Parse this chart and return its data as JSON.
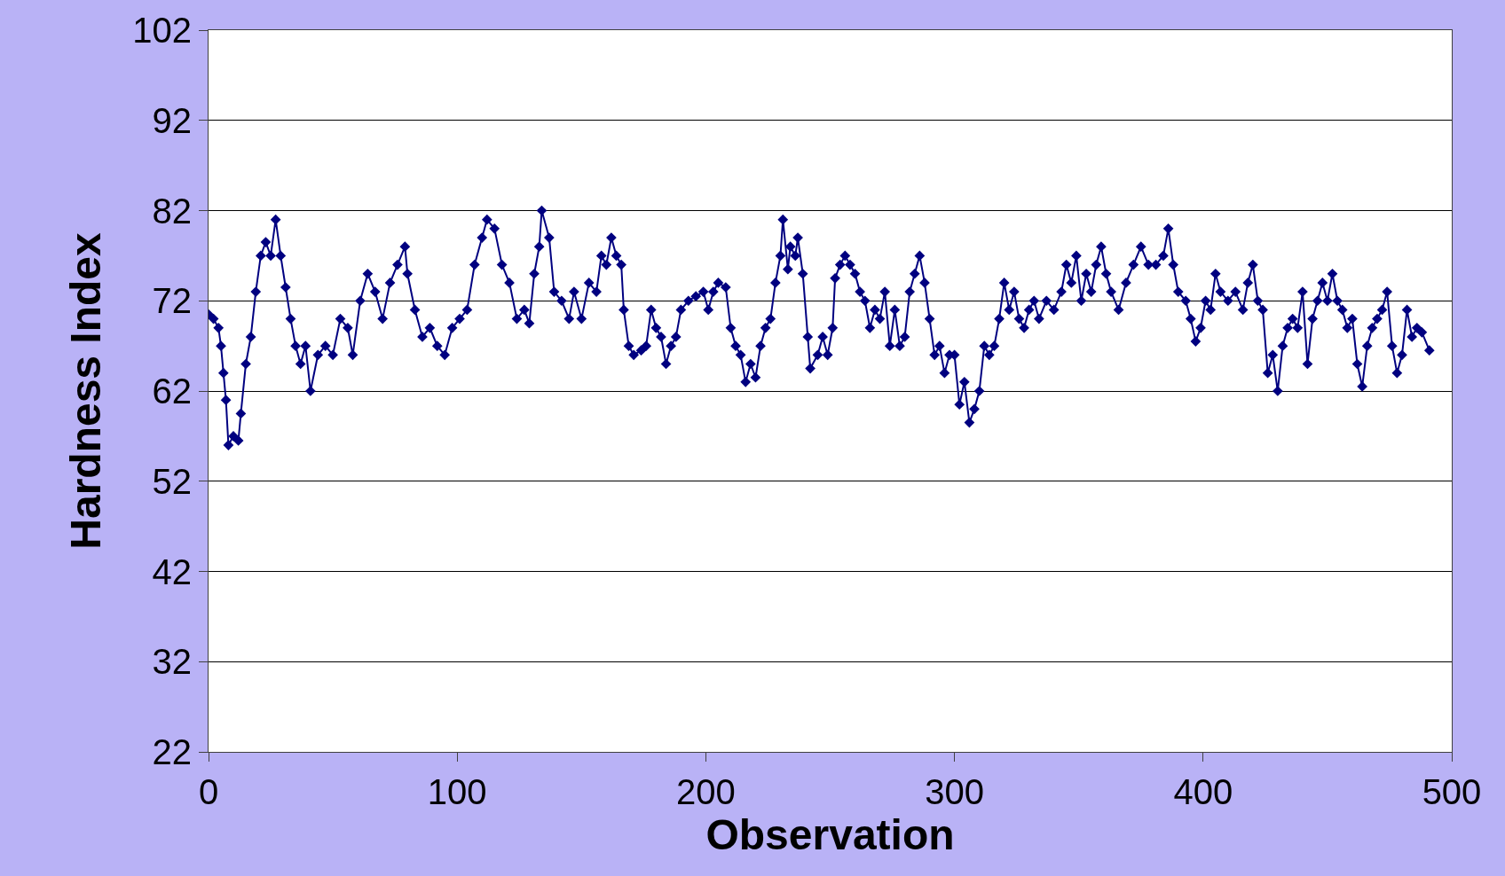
{
  "chart_data": {
    "type": "line",
    "xlabel": "Observation",
    "ylabel": "Hardness Index",
    "x": [
      0,
      2,
      4,
      5,
      6,
      7,
      8,
      10,
      12,
      13,
      15,
      17,
      19,
      21,
      23,
      25,
      27,
      29,
      31,
      33,
      35,
      37,
      39,
      41,
      44,
      47,
      50,
      53,
      56,
      58,
      61,
      64,
      67,
      70,
      73,
      76,
      79,
      80,
      83,
      86,
      89,
      92,
      95,
      98,
      101,
      104,
      107,
      110,
      112,
      115,
      118,
      121,
      124,
      127,
      129,
      131,
      133,
      134,
      137,
      139,
      142,
      145,
      147,
      150,
      153,
      156,
      158,
      160,
      162,
      164,
      166,
      167,
      169,
      171,
      174,
      176,
      178,
      180,
      182,
      184,
      186,
      188,
      190,
      193,
      196,
      199,
      201,
      203,
      205,
      208,
      210,
      212,
      214,
      216,
      218,
      220,
      222,
      224,
      226,
      228,
      230,
      231,
      233,
      234,
      236,
      237,
      239,
      241,
      242,
      245,
      247,
      249,
      251,
      252,
      254,
      256,
      258,
      260,
      262,
      264,
      266,
      268,
      270,
      272,
      274,
      276,
      278,
      280,
      282,
      284,
      286,
      288,
      290,
      292,
      294,
      296,
      298,
      300,
      302,
      304,
      306,
      308,
      310,
      312,
      314,
      316,
      318,
      320,
      322,
      324,
      326,
      328,
      330,
      332,
      334,
      337,
      340,
      343,
      345,
      347,
      349,
      351,
      353,
      355,
      357,
      359,
      361,
      363,
      366,
      369,
      372,
      375,
      378,
      381,
      384,
      386,
      388,
      390,
      393,
      395,
      397,
      399,
      401,
      403,
      405,
      407,
      410,
      413,
      416,
      418,
      420,
      422,
      424,
      426,
      428,
      430,
      432,
      434,
      436,
      438,
      440,
      442,
      444,
      446,
      448,
      450,
      452,
      454,
      456,
      458,
      460,
      462,
      464,
      466,
      468,
      470,
      472,
      474,
      476,
      478,
      480,
      482,
      484,
      486,
      488,
      491
    ],
    "values": [
      70.5,
      70,
      69,
      67,
      64,
      61,
      56,
      57,
      56.5,
      59.5,
      65,
      68,
      73,
      77,
      78.5,
      77,
      81,
      77,
      73.5,
      70,
      67,
      65,
      67,
      62,
      66,
      67,
      66,
      70,
      69,
      66,
      72,
      75,
      73,
      70,
      74,
      76,
      78,
      75,
      71,
      68,
      69,
      67,
      66,
      69,
      70,
      71,
      76,
      79,
      81,
      80,
      76,
      74,
      70,
      71,
      69.5,
      75,
      78,
      82,
      79,
      73,
      72,
      70,
      73,
      70,
      74,
      73,
      77,
      76,
      79,
      77,
      76,
      71,
      67,
      66,
      66.5,
      67,
      71,
      69,
      68,
      65,
      67,
      68,
      71,
      72,
      72.5,
      73,
      71,
      73,
      74,
      73.5,
      69,
      67,
      66,
      63,
      65,
      63.5,
      67,
      69,
      70,
      74,
      77,
      81,
      75.5,
      78,
      77,
      79,
      75,
      68,
      64.5,
      66,
      68,
      66,
      69,
      74.5,
      76,
      77,
      76,
      75,
      73,
      72,
      69,
      71,
      70,
      73,
      67,
      71,
      67,
      68,
      73,
      75,
      77,
      74,
      70,
      66,
      67,
      64,
      66,
      66,
      60.5,
      63,
      58.5,
      60,
      62,
      67,
      66,
      67,
      70,
      74,
      71,
      73,
      70,
      69,
      71,
      72,
      70,
      72,
      71,
      73,
      76,
      74,
      77,
      72,
      75,
      73,
      76,
      78,
      75,
      73,
      71,
      74,
      76,
      78,
      76,
      76,
      77,
      80,
      76,
      73,
      72,
      70,
      67.5,
      69,
      72,
      71,
      75,
      73,
      72,
      73,
      71,
      74,
      76,
      72,
      71,
      64,
      66,
      62,
      67,
      69,
      70,
      69,
      73,
      65,
      70,
      72,
      74,
      72,
      75,
      72,
      71,
      69,
      70,
      65,
      62.5,
      67,
      69,
      70,
      71,
      73,
      67,
      64,
      66,
      71,
      68,
      69,
      68.5,
      66.5
    ],
    "color": "#000080",
    "marker": "diamond",
    "xlim": [
      0,
      500
    ],
    "xticks": [
      0,
      100,
      200,
      300,
      400,
      500
    ],
    "ylim": [
      22,
      102
    ],
    "yticks": [
      22,
      32,
      42,
      52,
      62,
      72,
      82,
      92,
      102
    ],
    "grid": "y"
  }
}
